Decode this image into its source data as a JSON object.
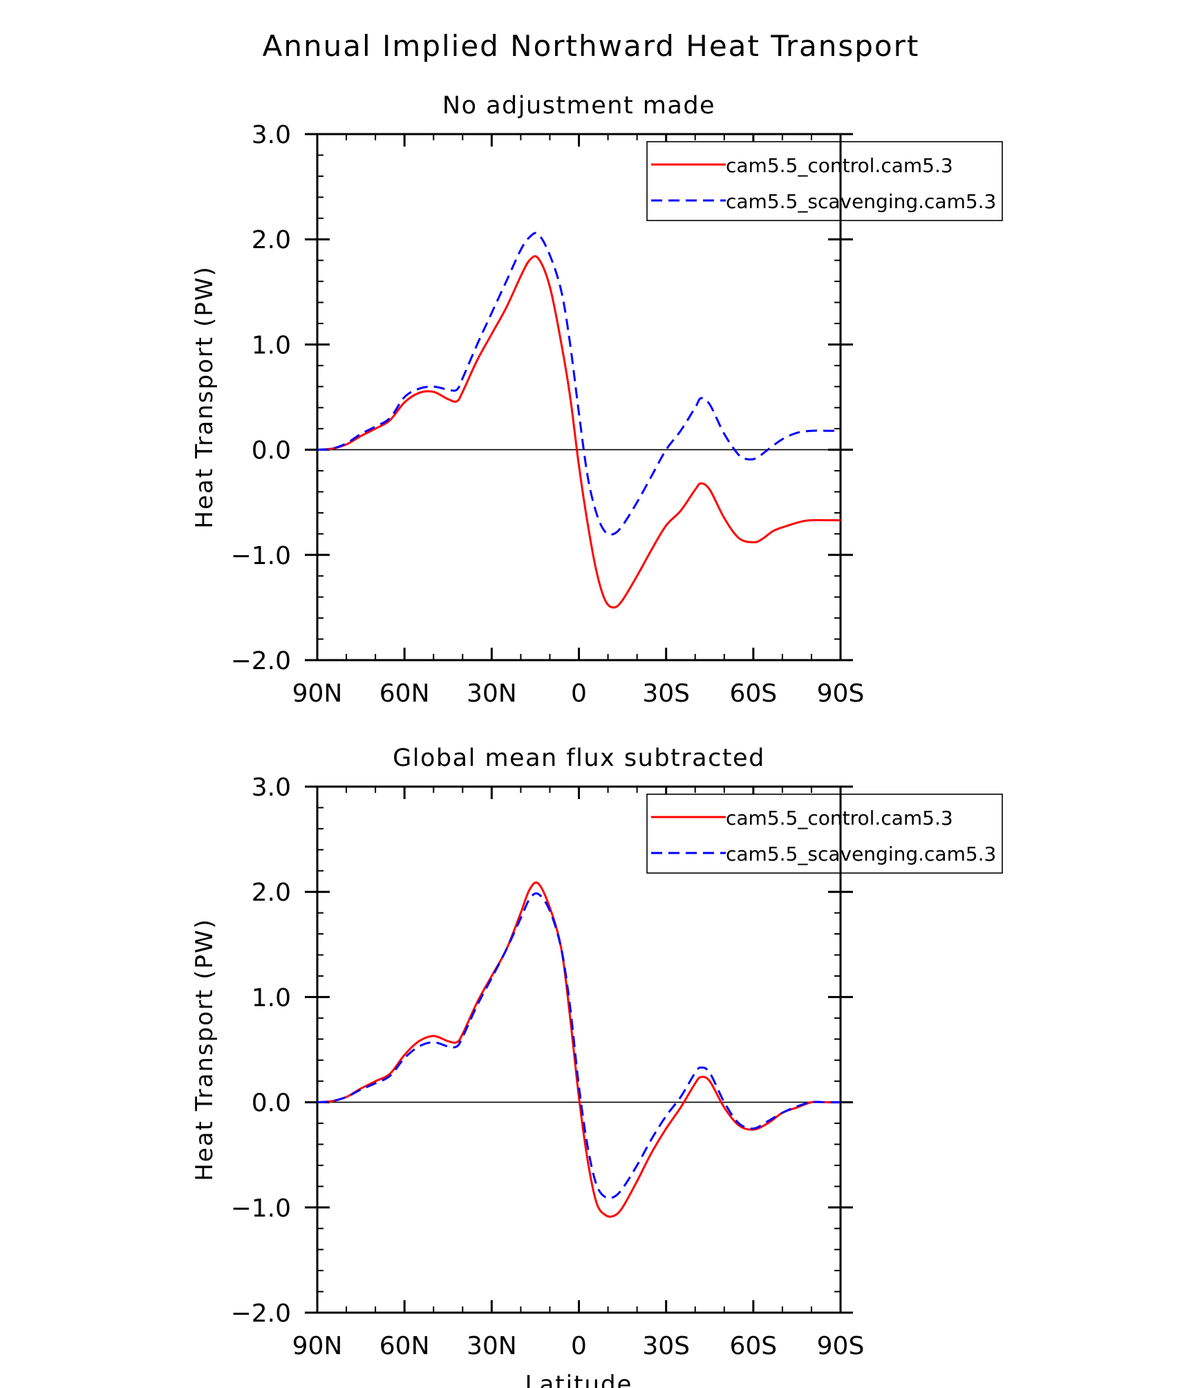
{
  "figure": {
    "title": "Annual Implied Northward Heat Transport"
  },
  "colors": {
    "control": "#ff0000",
    "scavenging": "#0000ff",
    "axis": "#000000"
  },
  "chart_data": [
    {
      "type": "line",
      "title": "No adjustment made",
      "xlabel": "",
      "ylabel": "Heat Transport (PW)",
      "x_units": "latitude (degrees, +N / -S)",
      "xlim": [
        90,
        -90
      ],
      "ylim": [
        -2.0,
        3.0
      ],
      "xticks": [
        {
          "value": 90,
          "label": "90N"
        },
        {
          "value": 60,
          "label": "60N"
        },
        {
          "value": 30,
          "label": "30N"
        },
        {
          "value": 0,
          "label": "0"
        },
        {
          "value": -30,
          "label": "30S"
        },
        {
          "value": -60,
          "label": "60S"
        },
        {
          "value": -90,
          "label": "90S"
        }
      ],
      "yticks": [
        {
          "value": 3.0,
          "label": "3.0"
        },
        {
          "value": 2.0,
          "label": "2.0"
        },
        {
          "value": 1.0,
          "label": "1.0"
        },
        {
          "value": 0.0,
          "label": "0.0"
        },
        {
          "value": -1.0,
          "label": "−1.0"
        },
        {
          "value": -2.0,
          "label": "−2.0"
        }
      ],
      "zero_line": true,
      "legend_position": "top-right",
      "series": [
        {
          "name": "cam5.5_control.cam5.3",
          "style": "solid",
          "points": [
            [
              90,
              0
            ],
            [
              85,
              0.01
            ],
            [
              80,
              0.05
            ],
            [
              75,
              0.13
            ],
            [
              70,
              0.2
            ],
            [
              65,
              0.28
            ],
            [
              60,
              0.45
            ],
            [
              55,
              0.54
            ],
            [
              50,
              0.55
            ],
            [
              45,
              0.48
            ],
            [
              42,
              0.46
            ],
            [
              40,
              0.55
            ],
            [
              35,
              0.85
            ],
            [
              30,
              1.1
            ],
            [
              25,
              1.35
            ],
            [
              20,
              1.65
            ],
            [
              17,
              1.8
            ],
            [
              14,
              1.82
            ],
            [
              10,
              1.55
            ],
            [
              6,
              1.0
            ],
            [
              3,
              0.5
            ],
            [
              0,
              -0.15
            ],
            [
              -3,
              -0.7
            ],
            [
              -6,
              -1.15
            ],
            [
              -9,
              -1.43
            ],
            [
              -12,
              -1.5
            ],
            [
              -15,
              -1.43
            ],
            [
              -20,
              -1.2
            ],
            [
              -25,
              -0.95
            ],
            [
              -30,
              -0.72
            ],
            [
              -35,
              -0.58
            ],
            [
              -40,
              -0.38
            ],
            [
              -42,
              -0.32
            ],
            [
              -45,
              -0.38
            ],
            [
              -50,
              -0.65
            ],
            [
              -55,
              -0.84
            ],
            [
              -60,
              -0.88
            ],
            [
              -63,
              -0.85
            ],
            [
              -67,
              -0.77
            ],
            [
              -72,
              -0.72
            ],
            [
              -77,
              -0.68
            ],
            [
              -80,
              -0.67
            ],
            [
              -85,
              -0.67
            ],
            [
              -90,
              -0.67
            ]
          ]
        },
        {
          "name": "cam5.5_scavenging.cam5.3",
          "style": "dashed",
          "points": [
            [
              90,
              0
            ],
            [
              85,
              0.01
            ],
            [
              80,
              0.06
            ],
            [
              75,
              0.15
            ],
            [
              70,
              0.22
            ],
            [
              65,
              0.3
            ],
            [
              60,
              0.5
            ],
            [
              55,
              0.58
            ],
            [
              50,
              0.6
            ],
            [
              45,
              0.57
            ],
            [
              42,
              0.57
            ],
            [
              40,
              0.68
            ],
            [
              35,
              1.0
            ],
            [
              30,
              1.3
            ],
            [
              25,
              1.6
            ],
            [
              20,
              1.9
            ],
            [
              17,
              2.02
            ],
            [
              14,
              2.05
            ],
            [
              10,
              1.85
            ],
            [
              6,
              1.5
            ],
            [
              3,
              1.0
            ],
            [
              0,
              0.35
            ],
            [
              -3,
              -0.25
            ],
            [
              -6,
              -0.6
            ],
            [
              -9,
              -0.78
            ],
            [
              -12,
              -0.8
            ],
            [
              -15,
              -0.72
            ],
            [
              -20,
              -0.5
            ],
            [
              -25,
              -0.25
            ],
            [
              -30,
              0.0
            ],
            [
              -35,
              0.18
            ],
            [
              -40,
              0.4
            ],
            [
              -42,
              0.49
            ],
            [
              -45,
              0.43
            ],
            [
              -50,
              0.15
            ],
            [
              -55,
              -0.05
            ],
            [
              -58,
              -0.09
            ],
            [
              -61,
              -0.08
            ],
            [
              -65,
              0.0
            ],
            [
              -70,
              0.1
            ],
            [
              -75,
              0.16
            ],
            [
              -80,
              0.18
            ],
            [
              -85,
              0.18
            ],
            [
              -90,
              0.18
            ]
          ]
        }
      ]
    },
    {
      "type": "line",
      "title": "Global mean flux subtracted",
      "xlabel": "Latitude",
      "ylabel": "Heat Transport (PW)",
      "x_units": "latitude (degrees, +N / -S)",
      "xlim": [
        90,
        -90
      ],
      "ylim": [
        -2.0,
        3.0
      ],
      "xticks": [
        {
          "value": 90,
          "label": "90N"
        },
        {
          "value": 60,
          "label": "60N"
        },
        {
          "value": 30,
          "label": "30N"
        },
        {
          "value": 0,
          "label": "0"
        },
        {
          "value": -30,
          "label": "30S"
        },
        {
          "value": -60,
          "label": "60S"
        },
        {
          "value": -90,
          "label": "90S"
        }
      ],
      "yticks": [
        {
          "value": 3.0,
          "label": "3.0"
        },
        {
          "value": 2.0,
          "label": "2.0"
        },
        {
          "value": 1.0,
          "label": "1.0"
        },
        {
          "value": 0.0,
          "label": "0.0"
        },
        {
          "value": -1.0,
          "label": "−1.0"
        },
        {
          "value": -2.0,
          "label": "−2.0"
        }
      ],
      "zero_line": true,
      "legend_position": "top-right",
      "series": [
        {
          "name": "cam5.5_control.cam5.3",
          "style": "solid",
          "points": [
            [
              90,
              0
            ],
            [
              85,
              0.01
            ],
            [
              80,
              0.05
            ],
            [
              75,
              0.13
            ],
            [
              70,
              0.2
            ],
            [
              65,
              0.27
            ],
            [
              60,
              0.45
            ],
            [
              55,
              0.58
            ],
            [
              50,
              0.63
            ],
            [
              45,
              0.58
            ],
            [
              42,
              0.57
            ],
            [
              40,
              0.65
            ],
            [
              35,
              0.95
            ],
            [
              30,
              1.2
            ],
            [
              25,
              1.45
            ],
            [
              20,
              1.8
            ],
            [
              17,
              2.02
            ],
            [
              14,
              2.08
            ],
            [
              10,
              1.85
            ],
            [
              6,
              1.45
            ],
            [
              3,
              0.8
            ],
            [
              0,
              0.05
            ],
            [
              -3,
              -0.55
            ],
            [
              -6,
              -0.95
            ],
            [
              -9,
              -1.07
            ],
            [
              -12,
              -1.08
            ],
            [
              -15,
              -1.0
            ],
            [
              -20,
              -0.75
            ],
            [
              -25,
              -0.48
            ],
            [
              -30,
              -0.25
            ],
            [
              -35,
              -0.05
            ],
            [
              -40,
              0.18
            ],
            [
              -42,
              0.24
            ],
            [
              -45,
              0.2
            ],
            [
              -50,
              -0.05
            ],
            [
              -55,
              -0.22
            ],
            [
              -60,
              -0.26
            ],
            [
              -65,
              -0.2
            ],
            [
              -70,
              -0.1
            ],
            [
              -75,
              -0.05
            ],
            [
              -80,
              0.0
            ],
            [
              -85,
              0.0
            ],
            [
              -90,
              0.0
            ]
          ]
        },
        {
          "name": "cam5.5_scavenging.cam5.3",
          "style": "dashed",
          "points": [
            [
              90,
              0
            ],
            [
              85,
              0.01
            ],
            [
              80,
              0.05
            ],
            [
              75,
              0.12
            ],
            [
              70,
              0.18
            ],
            [
              65,
              0.25
            ],
            [
              60,
              0.42
            ],
            [
              55,
              0.53
            ],
            [
              50,
              0.57
            ],
            [
              45,
              0.53
            ],
            [
              42,
              0.53
            ],
            [
              40,
              0.62
            ],
            [
              35,
              0.92
            ],
            [
              30,
              1.18
            ],
            [
              25,
              1.45
            ],
            [
              20,
              1.75
            ],
            [
              17,
              1.93
            ],
            [
              14,
              1.98
            ],
            [
              10,
              1.82
            ],
            [
              6,
              1.45
            ],
            [
              3,
              0.9
            ],
            [
              0,
              0.15
            ],
            [
              -3,
              -0.42
            ],
            [
              -6,
              -0.78
            ],
            [
              -9,
              -0.9
            ],
            [
              -12,
              -0.9
            ],
            [
              -15,
              -0.82
            ],
            [
              -20,
              -0.6
            ],
            [
              -25,
              -0.35
            ],
            [
              -30,
              -0.13
            ],
            [
              -35,
              0.05
            ],
            [
              -40,
              0.28
            ],
            [
              -42,
              0.33
            ],
            [
              -45,
              0.28
            ],
            [
              -50,
              0.0
            ],
            [
              -55,
              -0.2
            ],
            [
              -60,
              -0.25
            ],
            [
              -65,
              -0.18
            ],
            [
              -70,
              -0.1
            ],
            [
              -75,
              -0.04
            ],
            [
              -80,
              0.0
            ],
            [
              -85,
              0.0
            ],
            [
              -90,
              0.0
            ]
          ]
        }
      ]
    }
  ]
}
